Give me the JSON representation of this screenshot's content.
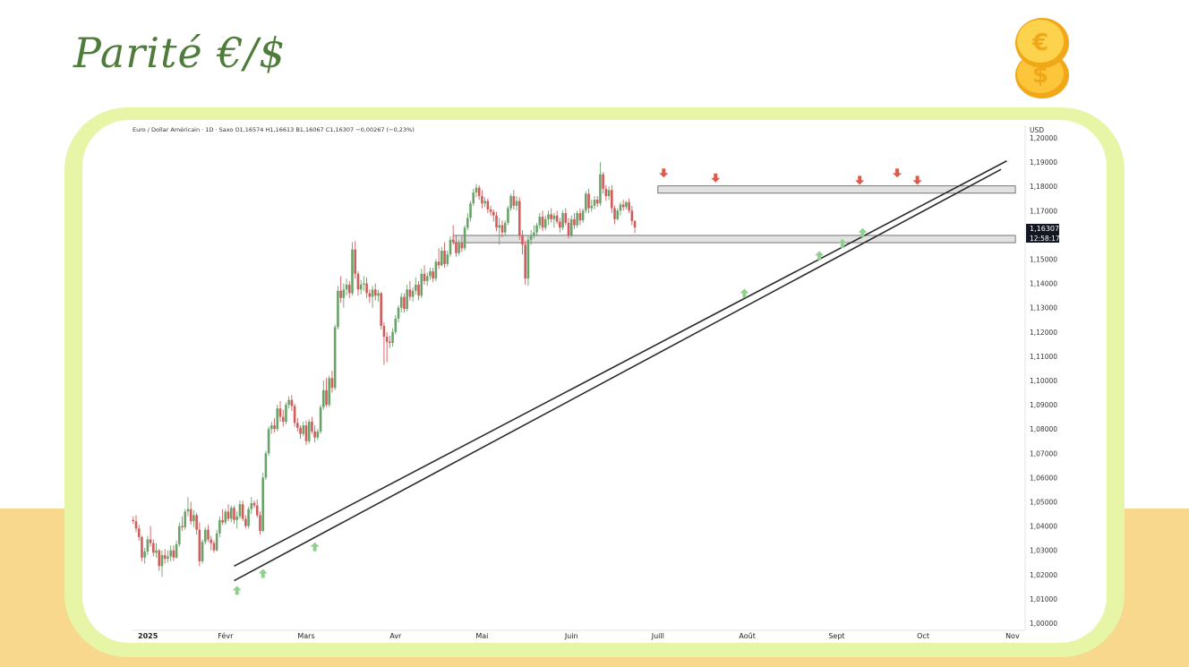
{
  "page": {
    "title": "Parité €/$"
  },
  "colors": {
    "up": "#6aa36a",
    "down": "#d05c5c",
    "arrow_up": "#8fd08f",
    "arrow_down": "#e05a4a",
    "band": "#f7d88c",
    "frame": "#e6f5a6",
    "title": "#4e7c3a"
  },
  "chart_data": {
    "type": "candlestick",
    "header": "Euro / Dollar Américain · 1D · Saxo  O1,16574  H1,16613  B1,16067  C1,16307  −0,00267 (−0,23%)",
    "currency": "USD",
    "ylim": [
      1.0,
      1.2
    ],
    "yticks": [
      "1,00000",
      "1,01000",
      "1,02000",
      "1,03000",
      "1,04000",
      "1,05000",
      "1,06000",
      "1,07000",
      "1,08000",
      "1,09000",
      "1,10000",
      "1,11000",
      "1,12000",
      "1,13000",
      "1,14000",
      "1,15000",
      "1,16000",
      "1,17000",
      "1,18000",
      "1,19000",
      "1,20000"
    ],
    "xticks": [
      {
        "label": "2025",
        "day": 0
      },
      {
        "label": "Févr",
        "day": 31
      },
      {
        "label": "Mars",
        "day": 59
      },
      {
        "label": "Avr",
        "day": 90
      },
      {
        "label": "Mai",
        "day": 120
      },
      {
        "label": "Juin",
        "day": 151
      },
      {
        "label": "Juill",
        "day": 181
      },
      {
        "label": "Août",
        "day": 212
      },
      {
        "label": "Sept",
        "day": 243
      },
      {
        "label": "Oct",
        "day": 273
      },
      {
        "label": "Nov",
        "day": 304
      }
    ],
    "last_price": "1,16307",
    "countdown": "12:58:17",
    "zones": [
      {
        "from_day": 181,
        "to_day": 305,
        "low": 1.1772,
        "high": 1.1802
      },
      {
        "from_day": 110,
        "to_day": 305,
        "low": 1.1568,
        "high": 1.1598
      }
    ],
    "trendlines": [
      {
        "start": [
          34,
          1.0175
        ],
        "end": [
          300,
          1.187
        ]
      },
      {
        "start": [
          34,
          1.0235
        ],
        "end": [
          302,
          1.1905
        ]
      }
    ],
    "arrows_up": [
      [
        35,
        1.0135
      ],
      [
        44,
        1.0205
      ],
      [
        62,
        1.0315
      ],
      [
        211,
        1.136
      ],
      [
        237,
        1.1515
      ],
      [
        245,
        1.1565
      ],
      [
        252,
        1.161
      ]
    ],
    "arrows_down": [
      [
        183,
        1.1855
      ],
      [
        201,
        1.1835
      ],
      [
        251,
        1.1825
      ],
      [
        264,
        1.1855
      ],
      [
        271,
        1.1825
      ]
    ],
    "candles": [
      [
        -1.0,
        1.0425,
        1.044,
        1.041,
        1.042
      ],
      [
        0.0,
        1.042,
        1.0445,
        1.0375,
        1.039
      ],
      [
        1.0,
        1.039,
        1.0405,
        1.034,
        1.0355
      ],
      [
        2.0,
        1.0355,
        1.036,
        1.0255,
        1.027
      ],
      [
        3.0,
        1.027,
        1.031,
        1.0245,
        1.0295
      ],
      [
        4.0,
        1.0295,
        1.036,
        1.028,
        1.0345
      ],
      [
        5.0,
        1.0345,
        1.04,
        1.0315,
        1.033
      ],
      [
        6.0,
        1.033,
        1.0345,
        1.0275,
        1.029
      ],
      [
        7.0,
        1.029,
        1.033,
        1.027,
        1.03
      ],
      [
        8.0,
        1.03,
        1.0305,
        1.0215,
        1.0235
      ],
      [
        9.0,
        1.0235,
        1.03,
        1.019,
        1.028
      ],
      [
        10.0,
        1.028,
        1.0305,
        1.0245,
        1.0265
      ],
      [
        11.0,
        1.0265,
        1.03,
        1.025,
        1.0275
      ],
      [
        12.0,
        1.0275,
        1.032,
        1.0255,
        1.03
      ],
      [
        13.0,
        1.03,
        1.032,
        1.0255,
        1.027
      ],
      [
        14.0,
        1.027,
        1.034,
        1.0265,
        1.0325
      ],
      [
        15.0,
        1.0325,
        1.0415,
        1.0315,
        1.04
      ],
      [
        16.0,
        1.04,
        1.044,
        1.038,
        1.0395
      ],
      [
        17.0,
        1.0395,
        1.047,
        1.0385,
        1.046
      ],
      [
        18.0,
        1.046,
        1.052,
        1.044,
        1.047
      ],
      [
        19.0,
        1.047,
        1.05,
        1.0405,
        1.042
      ],
      [
        20.0,
        1.042,
        1.0465,
        1.0395,
        1.0445
      ],
      [
        21.0,
        1.0445,
        1.0455,
        1.0365,
        1.0385
      ],
      [
        22.0,
        1.0385,
        1.0415,
        1.0235,
        1.0255
      ],
      [
        23.0,
        1.0255,
        1.0345,
        1.0245,
        1.0335
      ],
      [
        24.0,
        1.0335,
        1.0395,
        1.0325,
        1.0385
      ],
      [
        25.0,
        1.0385,
        1.0405,
        1.0335,
        1.0345
      ],
      [
        26.0,
        1.0345,
        1.036,
        1.03,
        1.033
      ],
      [
        27.0,
        1.033,
        1.034,
        1.029,
        1.03
      ],
      [
        28.0,
        1.03,
        1.0385,
        1.0295,
        1.037
      ],
      [
        29.0,
        1.037,
        1.044,
        1.0355,
        1.0425
      ],
      [
        30.0,
        1.0425,
        1.047,
        1.0405,
        1.0415
      ],
      [
        31.0,
        1.0415,
        1.047,
        1.0405,
        1.046
      ],
      [
        32.0,
        1.046,
        1.049,
        1.042,
        1.043
      ],
      [
        33.0,
        1.043,
        1.0485,
        1.0415,
        1.0475
      ],
      [
        34.0,
        1.0475,
        1.0485,
        1.041,
        1.0425
      ],
      [
        35.0,
        1.0425,
        1.046,
        1.039,
        1.044
      ],
      [
        36.0,
        1.044,
        1.0505,
        1.043,
        1.049
      ],
      [
        37.0,
        1.049,
        1.0505,
        1.042,
        1.043
      ],
      [
        38.0,
        1.043,
        1.0445,
        1.039,
        1.04
      ],
      [
        39.0,
        1.04,
        1.048,
        1.039,
        1.047
      ],
      [
        40.0,
        1.047,
        1.052,
        1.045,
        1.0495
      ],
      [
        41.0,
        1.0495,
        1.0505,
        1.0475,
        1.0485
      ],
      [
        42.0,
        1.0485,
        1.051,
        1.0435,
        1.0445
      ],
      [
        43.0,
        1.0445,
        1.046,
        1.0365,
        1.038
      ],
      [
        44.0,
        1.038,
        1.062,
        1.0375,
        1.06
      ],
      [
        45.0,
        1.06,
        1.071,
        1.059,
        1.07
      ],
      [
        46.0,
        1.07,
        1.081,
        1.069,
        1.08
      ],
      [
        47.0,
        1.08,
        1.083,
        1.078,
        1.0815
      ],
      [
        48.0,
        1.0815,
        1.0845,
        1.0785,
        1.08
      ],
      [
        49.0,
        1.08,
        1.09,
        1.079,
        1.0885
      ],
      [
        50.0,
        1.0885,
        1.0915,
        1.083,
        1.085
      ],
      [
        51.0,
        1.085,
        1.088,
        1.081,
        1.083
      ],
      [
        52.0,
        1.083,
        1.091,
        1.082,
        1.09
      ],
      [
        53.0,
        1.09,
        1.0935,
        1.0885,
        1.092
      ],
      [
        54.0,
        1.092,
        1.094,
        1.0875,
        1.0895
      ],
      [
        55.0,
        1.0895,
        1.0905,
        1.081,
        1.0825
      ],
      [
        56.0,
        1.0825,
        1.0845,
        1.079,
        1.0805
      ],
      [
        57.0,
        1.0805,
        1.0815,
        1.076,
        1.078
      ],
      [
        58.0,
        1.078,
        1.083,
        1.077,
        1.0815
      ],
      [
        59.0,
        1.0815,
        1.0835,
        1.0735,
        1.075
      ],
      [
        60.0,
        1.075,
        1.084,
        1.074,
        1.083
      ],
      [
        61.0,
        1.083,
        1.085,
        1.078,
        1.079
      ],
      [
        62.0,
        1.079,
        1.0815,
        1.0745,
        1.0765
      ],
      [
        63.0,
        1.0765,
        1.08,
        1.0755,
        1.079
      ],
      [
        64.0,
        1.079,
        1.09,
        1.078,
        1.089
      ],
      [
        65.0,
        1.089,
        1.1,
        1.088,
        1.096
      ],
      [
        66.0,
        1.096,
        1.101,
        1.089,
        1.09
      ],
      [
        67.0,
        1.09,
        1.102,
        1.089,
        1.101
      ],
      [
        68.0,
        1.101,
        1.104,
        1.095,
        1.097
      ],
      [
        69.0,
        1.097,
        1.123,
        1.096,
        1.122
      ],
      [
        70.0,
        1.122,
        1.139,
        1.121,
        1.137
      ],
      [
        71.0,
        1.137,
        1.143,
        1.132,
        1.134
      ],
      [
        72.0,
        1.134,
        1.14,
        1.13,
        1.1375
      ],
      [
        73.0,
        1.1375,
        1.142,
        1.135,
        1.1395
      ],
      [
        74.0,
        1.1395,
        1.141,
        1.134,
        1.136
      ],
      [
        75.0,
        1.136,
        1.157,
        1.135,
        1.154
      ],
      [
        76.0,
        1.154,
        1.1575,
        1.142,
        1.144
      ],
      [
        77.0,
        1.144,
        1.145,
        1.135,
        1.1375
      ],
      [
        78.0,
        1.1375,
        1.1415,
        1.1355,
        1.1395
      ],
      [
        79.0,
        1.1395,
        1.143,
        1.137,
        1.14
      ],
      [
        80.0,
        1.14,
        1.1425,
        1.134,
        1.136
      ],
      [
        81.0,
        1.136,
        1.1375,
        1.132,
        1.1345
      ],
      [
        82.0,
        1.1345,
        1.139,
        1.13,
        1.1375
      ],
      [
        83.0,
        1.1375,
        1.14,
        1.133,
        1.135
      ],
      [
        84.0,
        1.135,
        1.1375,
        1.1325,
        1.136
      ],
      [
        85.0,
        1.136,
        1.1365,
        1.121,
        1.1225
      ],
      [
        86.0,
        1.1225,
        1.124,
        1.1065,
        1.118
      ],
      [
        87.0,
        1.118,
        1.12,
        1.1075,
        1.116
      ],
      [
        88.0,
        1.116,
        1.1185,
        1.1135,
        1.1155
      ],
      [
        89.0,
        1.1155,
        1.1215,
        1.114,
        1.12
      ],
      [
        90.0,
        1.12,
        1.127,
        1.119,
        1.1255
      ],
      [
        91.0,
        1.1255,
        1.131,
        1.124,
        1.13
      ],
      [
        92.0,
        1.13,
        1.136,
        1.128,
        1.1345
      ],
      [
        93.0,
        1.1345,
        1.136,
        1.128,
        1.1295
      ],
      [
        94.0,
        1.1295,
        1.1395,
        1.1285,
        1.1375
      ],
      [
        95.0,
        1.1375,
        1.141,
        1.133,
        1.1345
      ],
      [
        96.0,
        1.1345,
        1.1385,
        1.1325,
        1.137
      ],
      [
        97.0,
        1.137,
        1.1425,
        1.1355,
        1.1395
      ],
      [
        98.0,
        1.1395,
        1.141,
        1.133,
        1.135
      ],
      [
        99.0,
        1.135,
        1.146,
        1.134,
        1.144
      ],
      [
        100.0,
        1.144,
        1.1475,
        1.1395,
        1.141
      ],
      [
        101.0,
        1.141,
        1.1445,
        1.139,
        1.143
      ],
      [
        102.0,
        1.143,
        1.1465,
        1.1415,
        1.145
      ],
      [
        103.0,
        1.145,
        1.1465,
        1.1405,
        1.142
      ],
      [
        104.0,
        1.142,
        1.15,
        1.141,
        1.149
      ],
      [
        105.0,
        1.149,
        1.1545,
        1.146,
        1.1475
      ],
      [
        106.0,
        1.1475,
        1.155,
        1.147,
        1.1535
      ],
      [
        107.0,
        1.1535,
        1.157,
        1.1465,
        1.148
      ],
      [
        108.0,
        1.148,
        1.1535,
        1.147,
        1.152
      ],
      [
        109.0,
        1.152,
        1.1595,
        1.151,
        1.158
      ],
      [
        110.0,
        1.158,
        1.164,
        1.156,
        1.157
      ],
      [
        111.0,
        1.157,
        1.16,
        1.151,
        1.1525
      ],
      [
        112.0,
        1.1525,
        1.158,
        1.1515,
        1.1565
      ],
      [
        113.0,
        1.1565,
        1.1595,
        1.153,
        1.1545
      ],
      [
        114.0,
        1.1545,
        1.164,
        1.1535,
        1.163
      ],
      [
        115.0,
        1.163,
        1.169,
        1.162,
        1.167
      ],
      [
        116.0,
        1.167,
        1.174,
        1.1655,
        1.173
      ],
      [
        117.0,
        1.173,
        1.179,
        1.172,
        1.1775
      ],
      [
        118.0,
        1.1775,
        1.181,
        1.1755,
        1.1795
      ],
      [
        119.0,
        1.1795,
        1.1805,
        1.1745,
        1.176
      ],
      [
        120.0,
        1.176,
        1.1785,
        1.171,
        1.173
      ],
      [
        121.0,
        1.173,
        1.1755,
        1.1715,
        1.174
      ],
      [
        122.0,
        1.174,
        1.175,
        1.169,
        1.1705
      ],
      [
        123.0,
        1.1705,
        1.172,
        1.168,
        1.1695
      ],
      [
        124.0,
        1.1695,
        1.1705,
        1.1655,
        1.168
      ],
      [
        125.0,
        1.168,
        1.1695,
        1.1615,
        1.163
      ],
      [
        126.0,
        1.163,
        1.167,
        1.156,
        1.164
      ],
      [
        127.0,
        1.164,
        1.166,
        1.159,
        1.161
      ],
      [
        128.0,
        1.161,
        1.166,
        1.16,
        1.165
      ],
      [
        129.0,
        1.165,
        1.172,
        1.164,
        1.171
      ],
      [
        130.0,
        1.171,
        1.177,
        1.17,
        1.176
      ],
      [
        131.0,
        1.176,
        1.1785,
        1.1705,
        1.172
      ],
      [
        132.0,
        1.172,
        1.176,
        1.17,
        1.174
      ],
      [
        133.0,
        1.174,
        1.1755,
        1.158,
        1.16
      ],
      [
        134.0,
        1.16,
        1.162,
        1.152,
        1.156
      ],
      [
        135.0,
        1.156,
        1.1575,
        1.1395,
        1.142
      ],
      [
        136.0,
        1.142,
        1.16,
        1.139,
        1.158
      ],
      [
        137.0,
        1.158,
        1.162,
        1.156,
        1.16
      ],
      [
        138.0,
        1.16,
        1.164,
        1.1585,
        1.161
      ],
      [
        139.0,
        1.161,
        1.165,
        1.1595,
        1.164
      ],
      [
        140.0,
        1.164,
        1.169,
        1.1625,
        1.1675
      ],
      [
        141.0,
        1.1675,
        1.17,
        1.1615,
        1.163
      ],
      [
        142.0,
        1.163,
        1.168,
        1.162,
        1.1665
      ],
      [
        143.0,
        1.1665,
        1.17,
        1.164,
        1.1685
      ],
      [
        144.0,
        1.1685,
        1.171,
        1.165,
        1.1665
      ],
      [
        145.0,
        1.1665,
        1.169,
        1.163,
        1.168
      ],
      [
        146.0,
        1.168,
        1.17,
        1.1645,
        1.1655
      ],
      [
        147.0,
        1.1655,
        1.167,
        1.161,
        1.163
      ],
      [
        148.0,
        1.163,
        1.17,
        1.162,
        1.169
      ],
      [
        149.0,
        1.169,
        1.171,
        1.164,
        1.165
      ],
      [
        150.0,
        1.165,
        1.167,
        1.1585,
        1.16
      ],
      [
        151.0,
        1.16,
        1.168,
        1.159,
        1.1665
      ],
      [
        152.0,
        1.1665,
        1.169,
        1.1625,
        1.164
      ],
      [
        153.0,
        1.164,
        1.17,
        1.163,
        1.169
      ],
      [
        154.0,
        1.169,
        1.171,
        1.164,
        1.166
      ],
      [
        155.0,
        1.166,
        1.171,
        1.165,
        1.17
      ],
      [
        156.0,
        1.17,
        1.178,
        1.169,
        1.177
      ],
      [
        157.0,
        1.177,
        1.179,
        1.169,
        1.171
      ],
      [
        158.0,
        1.171,
        1.1745,
        1.1695,
        1.172
      ],
      [
        159.0,
        1.172,
        1.176,
        1.1705,
        1.1745
      ],
      [
        160.0,
        1.1745,
        1.176,
        1.1715,
        1.173
      ],
      [
        161.0,
        1.173,
        1.19,
        1.172,
        1.185
      ],
      [
        162.0,
        1.185,
        1.186,
        1.177,
        1.179
      ],
      [
        163.0,
        1.179,
        1.1805,
        1.174,
        1.176
      ],
      [
        164.0,
        1.176,
        1.18,
        1.1745,
        1.1785
      ],
      [
        165.0,
        1.1785,
        1.1805,
        1.169,
        1.171
      ],
      [
        166.0,
        1.171,
        1.172,
        1.1645,
        1.1665
      ],
      [
        167.0,
        1.1665,
        1.171,
        1.166,
        1.17
      ],
      [
        168.0,
        1.17,
        1.1735,
        1.168,
        1.1725
      ],
      [
        169.0,
        1.1725,
        1.1745,
        1.17,
        1.1715
      ],
      [
        170.0,
        1.1715,
        1.174,
        1.1705,
        1.1735
      ],
      [
        171.0,
        1.1735,
        1.175,
        1.169,
        1.17
      ],
      [
        172.0,
        1.17,
        1.172,
        1.164,
        1.1657
      ],
      [
        173.0,
        1.1657,
        1.1661,
        1.1607,
        1.1631
      ]
    ]
  }
}
